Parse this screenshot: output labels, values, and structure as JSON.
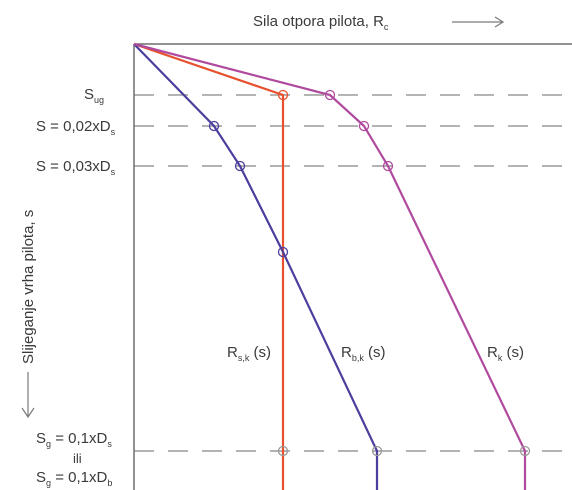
{
  "top_axis": {
    "title": "Sila otpora pilota, R",
    "title_sub": "c",
    "arrow_glyph": "⟶"
  },
  "left_axis": {
    "title": "Slijeganje vrha pilota, s",
    "arrow_glyph": "⟶"
  },
  "settlement_labels": {
    "s_ug": {
      "main": "S",
      "sub": "ug"
    },
    "s_002": {
      "main": "S = 0,02xD",
      "sub": "s"
    },
    "s_003": {
      "main": "S = 0,03xD",
      "sub": "s"
    },
    "s_g_line1": {
      "main": "S",
      "sub": "g",
      "tail": " = 0,1xD",
      "tail_sub": "s"
    },
    "s_g_ili": "ili",
    "s_g_line2": {
      "main": "S",
      "sub": "g",
      "tail": " = 0,1xD",
      "tail_sub": "b"
    }
  },
  "curves": {
    "r_sk": {
      "main": "R",
      "sub": "s,k",
      "tail": " (s)",
      "color": "#e8512f"
    },
    "r_bk": {
      "main": "R",
      "sub": "b,k",
      "tail": " (s)",
      "color": "#4b3f9e"
    },
    "r_k": {
      "main": "R",
      "sub": "k",
      "tail": " (s)",
      "color": "#b04a9e"
    }
  },
  "colors": {
    "axis": "#6e6e6e",
    "dash": "#9a9a9a",
    "text": "#3a3a3a"
  }
}
